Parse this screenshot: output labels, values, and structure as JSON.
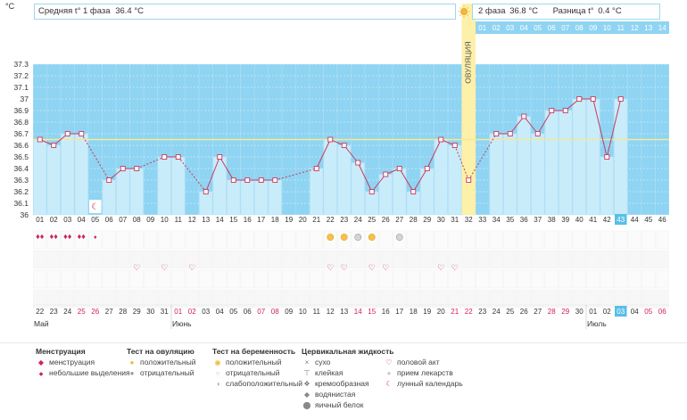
{
  "header": {
    "phase1": "Средняя t° 1 фаза",
    "phase1_value": "36.4 °C",
    "phase2": "2 фаза",
    "phase2_value": "36.8 °C",
    "diff_label": "Разница t°",
    "diff_value": "0.4 °C"
  },
  "chart_data": {
    "type": "line",
    "unit_label": "°C",
    "ovulation_label": "ОВУЛЯЦИЯ",
    "ylim": [
      36,
      37.3
    ],
    "y_ticks": [
      "36",
      "36.1",
      "36.2",
      "36.3",
      "36.4",
      "36.5",
      "36.6",
      "36.7",
      "36.8",
      "36.9",
      "37",
      "37.1",
      "37.2",
      "37.3"
    ],
    "coverline": 36.65,
    "ovulation_cycle_day": 32,
    "ovulation_days_after": [
      "01",
      "02",
      "03",
      "04",
      "05",
      "06",
      "07",
      "08",
      "09",
      "10",
      "11",
      "12",
      "13",
      "14"
    ],
    "cycle_days": [
      "01",
      "02",
      "03",
      "04",
      "05",
      "06",
      "07",
      "08",
      "09",
      "10",
      "11",
      "12",
      "13",
      "14",
      "15",
      "16",
      "17",
      "18",
      "19",
      "20",
      "21",
      "22",
      "23",
      "24",
      "25",
      "26",
      "27",
      "28",
      "29",
      "30",
      "31",
      "32",
      "33",
      "34",
      "35",
      "36",
      "37",
      "38",
      "39",
      "40",
      "41",
      "42",
      "43",
      "44",
      "45",
      "46"
    ],
    "current_day": "43",
    "temps": [
      36.65,
      36.6,
      36.7,
      36.7,
      null,
      36.3,
      36.4,
      36.4,
      null,
      36.5,
      36.5,
      null,
      36.2,
      36.5,
      36.3,
      36.3,
      36.3,
      36.3,
      null,
      null,
      36.4,
      36.65,
      36.6,
      36.45,
      36.2,
      36.35,
      36.4,
      36.2,
      36.4,
      36.65,
      36.6,
      36.3,
      null,
      36.7,
      36.7,
      36.85,
      36.7,
      36.9,
      36.9,
      37.0,
      37.0,
      36.5,
      37.0,
      null,
      null,
      null
    ],
    "measured_line_days": [
      1,
      2,
      3,
      4,
      6,
      7,
      8,
      10,
      11,
      13,
      14,
      15,
      16,
      17,
      18,
      21,
      22,
      23,
      24,
      25,
      26,
      27,
      28,
      29,
      30,
      31,
      32,
      34,
      35,
      36,
      37,
      38,
      39,
      40,
      41,
      42,
      43
    ],
    "dates": [
      "22",
      "23",
      "24",
      "25",
      "26",
      "27",
      "28",
      "29",
      "30",
      "31",
      "01",
      "02",
      "03",
      "04",
      "05",
      "06",
      "07",
      "08",
      "09",
      "10",
      "11",
      "12",
      "13",
      "14",
      "15",
      "16",
      "17",
      "18",
      "19",
      "20",
      "21",
      "22",
      "23",
      "24",
      "25",
      "26",
      "27",
      "28",
      "29",
      "30",
      "01",
      "02",
      "03",
      "04",
      "05",
      "06"
    ],
    "date_red_indexes": [
      3,
      4,
      10,
      11,
      16,
      17,
      23,
      24,
      30,
      31,
      37,
      38,
      44,
      45
    ],
    "months": [
      "Май",
      "Июнь",
      "Июль"
    ],
    "menstruation_days": [
      1,
      2,
      3,
      4
    ],
    "spotting_days": [
      5
    ],
    "ovulation_test_positive_days": [
      22,
      23,
      25
    ],
    "ovulation_test_negative_days": [
      24,
      27
    ],
    "intercourse_days": [
      8,
      10,
      12,
      22,
      23,
      25,
      26,
      30,
      31
    ],
    "lunar_calendar_days": [
      5
    ]
  },
  "legend": {
    "menstruation": {
      "title": "Менструация",
      "items": [
        "менструация",
        "небольшие выделения"
      ]
    },
    "ovulation_test": {
      "title": "Тест на овуляцию",
      "items": [
        "положительный",
        "отрицательный"
      ]
    },
    "pregnancy_test": {
      "title": "Тест на беременность",
      "items": [
        "положительный",
        "отрицательный",
        "слабоположительный"
      ]
    },
    "cervical_fluid": {
      "title": "Цервикальная жидкость",
      "items": [
        "сухо",
        "клейкая",
        "кремообразная",
        "водянистая",
        "яичный белок"
      ]
    },
    "other": {
      "items": [
        "половой акт",
        "прием лекарств",
        "лунный календарь"
      ]
    }
  },
  "colors": {
    "sky": "#8fd4f2",
    "bar": "#c9ecfb",
    "ovulation": "#fdf0a8",
    "line": "#c73a5e",
    "coverline": "#f3e89a",
    "current_day": "#56bfe6",
    "red_date": "#d0215e"
  }
}
